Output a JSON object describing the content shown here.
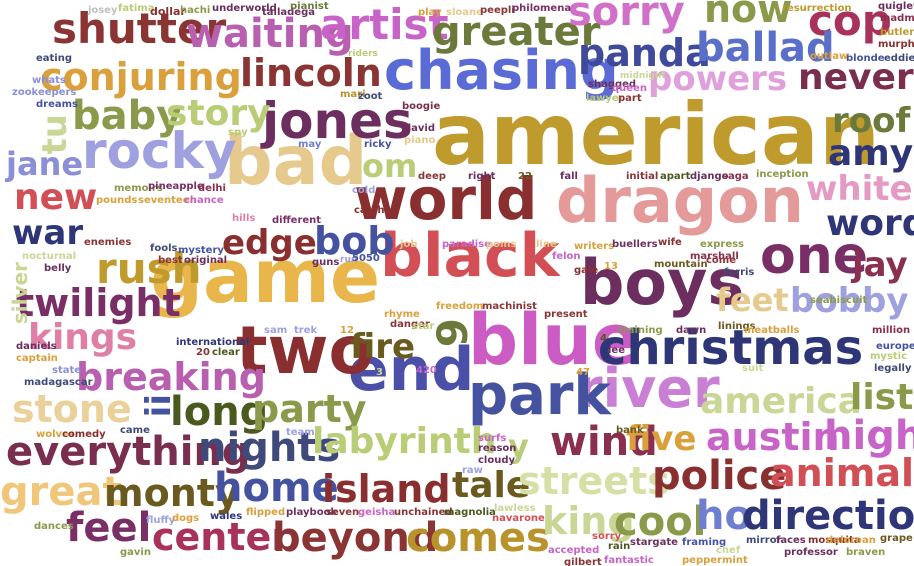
{
  "words": [
    {
      "text": "american",
      "color": "#bf9a2d"
    },
    {
      "text": "game",
      "color": "#e8b64a"
    },
    {
      "text": "blue",
      "color": "#cc5bc4"
    },
    {
      "text": "bad",
      "color": "#e6c98c"
    },
    {
      "text": "dragon",
      "color": "#e59a9a"
    },
    {
      "text": "world",
      "color": "#8a2f2f"
    },
    {
      "text": "black",
      "color": "#d24f55"
    },
    {
      "text": "boys",
      "color": "#6b2e5e"
    },
    {
      "text": "end",
      "color": "#4a4fa8"
    },
    {
      "text": "two",
      "color": "#8a2f2f"
    },
    {
      "text": "chasing",
      "color": "#5a6bd6"
    },
    {
      "text": "christmas",
      "color": "#2f3677"
    },
    {
      "text": "river",
      "color": "#c87fd4"
    },
    {
      "text": "park",
      "color": "#4552a0"
    },
    {
      "text": "jones",
      "color": "#6b2e5e"
    },
    {
      "text": "rocky",
      "color": "#9ea0e0"
    },
    {
      "text": "one",
      "color": "#7a2e66"
    },
    {
      "text": "shutter",
      "color": "#8a3434"
    },
    {
      "text": "waiting",
      "color": "#b85fb0"
    },
    {
      "text": "artist",
      "color": "#c864c8"
    },
    {
      "text": "greater",
      "color": "#6b7a3a"
    },
    {
      "text": "sorry",
      "color": "#d070c8"
    },
    {
      "text": "now",
      "color": "#8a9a4a"
    },
    {
      "text": "cop",
      "color": "#a8325a"
    },
    {
      "text": "panda",
      "color": "#3f4a9a"
    },
    {
      "text": "ballad",
      "color": "#5a70c8"
    },
    {
      "text": "conjuring",
      "color": "#d9a03c"
    },
    {
      "text": "lincoln",
      "color": "#8a3434"
    },
    {
      "text": "powers",
      "color": "#e0a0dc"
    },
    {
      "text": "never",
      "color": "#7a2e4e"
    },
    {
      "text": "baby",
      "color": "#8a9a4a"
    },
    {
      "text": "story",
      "color": "#b9cc76"
    },
    {
      "text": "roof",
      "color": "#6b7a3a"
    },
    {
      "text": "amy",
      "color": "#2f3677"
    },
    {
      "text": "jane",
      "color": "#8a8fd6"
    },
    {
      "text": "new",
      "color": "#d24f55"
    },
    {
      "text": "war",
      "color": "#2f3677"
    },
    {
      "text": "om",
      "color": "#b9cc76"
    },
    {
      "text": "white",
      "color": "#e59ac4"
    },
    {
      "text": "word",
      "color": "#2f3677"
    },
    {
      "text": "edge",
      "color": "#8a2f2f"
    },
    {
      "text": "bob",
      "color": "#4552a0"
    },
    {
      "text": "rush",
      "color": "#bf9a2d"
    },
    {
      "text": "jay",
      "color": "#8a2f4e"
    },
    {
      "text": "twilight",
      "color": "#7a2e66"
    },
    {
      "text": "feet",
      "color": "#e6c98c"
    },
    {
      "text": "bobby",
      "color": "#9ea0e0"
    },
    {
      "text": "kings",
      "color": "#e07fa6"
    },
    {
      "text": "fire",
      "color": "#6b5a1f"
    },
    {
      "text": "breaking",
      "color": "#b85fb0"
    },
    {
      "text": "stone",
      "color": "#ead09a"
    },
    {
      "text": "long",
      "color": "#4a5a1f"
    },
    {
      "text": "party",
      "color": "#8a9a4a"
    },
    {
      "text": "america",
      "color": "#c9d696"
    },
    {
      "text": "list",
      "color": "#8a9a4a"
    },
    {
      "text": "everything",
      "color": "#7a2e4e"
    },
    {
      "text": "nights",
      "color": "#3f4a7a"
    },
    {
      "text": "labyrinth",
      "color": "#b9cc76"
    },
    {
      "text": "wind",
      "color": "#8a2f4e"
    },
    {
      "text": "five",
      "color": "#d9a03c"
    },
    {
      "text": "austin",
      "color": "#c864c8"
    },
    {
      "text": "high",
      "color": "#c864c8"
    },
    {
      "text": "great",
      "color": "#f0c77a"
    },
    {
      "text": "monty",
      "color": "#6b5a1f"
    },
    {
      "text": "home",
      "color": "#4552a0"
    },
    {
      "text": "island",
      "color": "#8a2f2f"
    },
    {
      "text": "tale",
      "color": "#6b5a1f"
    },
    {
      "text": "streets",
      "color": "#d6e0a6"
    },
    {
      "text": "police",
      "color": "#8a2f2f"
    },
    {
      "text": "animals",
      "color": "#d24f55"
    },
    {
      "text": "feel",
      "color": "#7a2e66"
    },
    {
      "text": "center",
      "color": "#a8325a"
    },
    {
      "text": "beyond",
      "color": "#8a3434"
    },
    {
      "text": "comes",
      "color": "#b8922a"
    },
    {
      "text": "king",
      "color": "#c9d696"
    },
    {
      "text": "cool",
      "color": "#8a9a4a"
    },
    {
      "text": "ho",
      "color": "#6f7fd0"
    },
    {
      "text": "direction",
      "color": "#2f3677"
    },
    {
      "text": "tu",
      "color": "#c9d696"
    },
    {
      "text": "ii",
      "color": "#4552a0"
    },
    {
      "text": "9",
      "color": "#6b7a3a"
    },
    {
      "text": "y",
      "color": "#b9cc76"
    },
    {
      "text": "josey",
      "color": "#c0c0c0"
    },
    {
      "text": "fatima",
      "color": "#b9cc76"
    },
    {
      "text": "dollar",
      "color": "#8a2f2f"
    },
    {
      "text": "hachi",
      "color": "#8a9a4a"
    },
    {
      "text": "underworld",
      "color": "#6b2e5e"
    },
    {
      "text": "talladega",
      "color": "#6b2e5e"
    },
    {
      "text": "pianist",
      "color": "#6b7a3a"
    },
    {
      "text": "play",
      "color": "#d9a03c"
    },
    {
      "text": "sloane",
      "color": "#e6c98c"
    },
    {
      "text": "peepli",
      "color": "#8a3434"
    },
    {
      "text": "philomena",
      "color": "#7a2e66"
    },
    {
      "text": "resurrection",
      "color": "#bf9a2d"
    },
    {
      "text": "quigley",
      "color": "#6b2e5e"
    },
    {
      "text": "madman",
      "color": "#8a2f4e"
    },
    {
      "text": "butler",
      "color": "#bf9a2d"
    },
    {
      "text": "murphy",
      "color": "#8a2f2f"
    },
    {
      "text": "eddie",
      "color": "#3f4a7a"
    },
    {
      "text": "blonde",
      "color": "#4552a0"
    },
    {
      "text": "outlaw",
      "color": "#d9a03c"
    },
    {
      "text": "eating",
      "color": "#3f4a7a"
    },
    {
      "text": "whats",
      "color": "#8a8fd6"
    },
    {
      "text": "zookeepers",
      "color": "#8a8fd6"
    },
    {
      "text": "dreams",
      "color": "#4552a0"
    },
    {
      "text": "riders",
      "color": "#b9cc76"
    },
    {
      "text": "mari",
      "color": "#b8922a"
    },
    {
      "text": "zoot",
      "color": "#3f4a7a"
    },
    {
      "text": "midnight",
      "color": "#c9d696"
    },
    {
      "text": "shagged",
      "color": "#6b2e5e"
    },
    {
      "text": "queen",
      "color": "#c864c8"
    },
    {
      "text": "lawyer",
      "color": "#b9cc76"
    },
    {
      "text": "part",
      "color": "#8a3434"
    },
    {
      "text": "boogie",
      "color": "#7a2e4e"
    },
    {
      "text": "david",
      "color": "#6b2e5e"
    },
    {
      "text": "piano",
      "color": "#e6c98c"
    },
    {
      "text": "spy",
      "color": "#b9cc76"
    },
    {
      "text": "may",
      "color": "#6f7fd0"
    },
    {
      "text": "ricky",
      "color": "#4552a0"
    },
    {
      "text": "deep",
      "color": "#8a3434"
    },
    {
      "text": "right",
      "color": "#6b2e5e"
    },
    {
      "text": "22",
      "color": "#6b5a1f"
    },
    {
      "text": "fall",
      "color": "#6b2e5e"
    },
    {
      "text": "initial",
      "color": "#8a3434"
    },
    {
      "text": "apart",
      "color": "#4a5a1f"
    },
    {
      "text": "django",
      "color": "#6b2e5e"
    },
    {
      "text": "saga",
      "color": "#8a2f4e"
    },
    {
      "text": "inception",
      "color": "#8a9a4a"
    },
    {
      "text": "cold",
      "color": "#9ea0e0"
    },
    {
      "text": "memoirs",
      "color": "#8a9a4a"
    },
    {
      "text": "pineapple",
      "color": "#7a2e66"
    },
    {
      "text": "delhi",
      "color": "#8a2f4e"
    },
    {
      "text": "pounds",
      "color": "#d9a03c"
    },
    {
      "text": "seventeen",
      "color": "#d9a03c"
    },
    {
      "text": "chance",
      "color": "#c864c8"
    },
    {
      "text": "hills",
      "color": "#e07fa6"
    },
    {
      "text": "different",
      "color": "#7a2e66"
    },
    {
      "text": "catch",
      "color": "#8a2f2f"
    },
    {
      "text": "enemies",
      "color": "#8a3434"
    },
    {
      "text": "nocturnal",
      "color": "#c9d696"
    },
    {
      "text": "belly",
      "color": "#6b2e5e"
    },
    {
      "text": "silver",
      "color": "#c9d696"
    },
    {
      "text": "fools",
      "color": "#3f4a7a"
    },
    {
      "text": "best",
      "color": "#8a3434"
    },
    {
      "text": "mystery",
      "color": "#4552a0"
    },
    {
      "text": "original",
      "color": "#6b2e5e"
    },
    {
      "text": "guns",
      "color": "#6b2e5e"
    },
    {
      "text": "run",
      "color": "#9ea0e0"
    },
    {
      "text": "5050",
      "color": "#4552a0"
    },
    {
      "text": "job",
      "color": "#e6c98c"
    },
    {
      "text": "paradise",
      "color": "#c864c8"
    },
    {
      "text": "poms",
      "color": "#e6c98c"
    },
    {
      "text": "line",
      "color": "#e6c98c"
    },
    {
      "text": "writers",
      "color": "#d9a03c"
    },
    {
      "text": "buellers",
      "color": "#6b2e5e"
    },
    {
      "text": "wife",
      "color": "#8a2f2f"
    },
    {
      "text": "express",
      "color": "#8a9a4a"
    },
    {
      "text": "come",
      "color": "#8a3434"
    },
    {
      "text": "ferris",
      "color": "#3f4a7a"
    },
    {
      "text": "mountain",
      "color": "#6b5a1f"
    },
    {
      "text": "marshall",
      "color": "#8a2f4e"
    },
    {
      "text": "felon",
      "color": "#c864c8"
    },
    {
      "text": "gale",
      "color": "#8a2f2f"
    },
    {
      "text": "13",
      "color": "#d9a03c"
    },
    {
      "text": "freedom",
      "color": "#d9a03c"
    },
    {
      "text": "machinist",
      "color": "#8a3434"
    },
    {
      "text": "rhyme",
      "color": "#d9a03c"
    },
    {
      "text": "danger",
      "color": "#8a3434"
    },
    {
      "text": "star",
      "color": "#b9cc76"
    },
    {
      "text": "present",
      "color": "#8a3434"
    },
    {
      "text": "trek",
      "color": "#9ea0e0"
    },
    {
      "text": "sam",
      "color": "#9ea0e0"
    },
    {
      "text": "12",
      "color": "#d9a03c"
    },
    {
      "text": "training",
      "color": "#8a9a4a"
    },
    {
      "text": "dawn",
      "color": "#6b2e5e"
    },
    {
      "text": "linings",
      "color": "#6b5a1f"
    },
    {
      "text": "meatballs",
      "color": "#d9a03c"
    },
    {
      "text": "seabiscuit",
      "color": "#8a9a4a"
    },
    {
      "text": "million",
      "color": "#8a2f4e"
    },
    {
      "text": "europes",
      "color": "#4552a0"
    },
    {
      "text": "mystic",
      "color": "#b9cc76"
    },
    {
      "text": "legally",
      "color": "#3f4a7a"
    },
    {
      "text": "international",
      "color": "#2f3677"
    },
    {
      "text": "20",
      "color": "#8a3434"
    },
    {
      "text": "clear",
      "color": "#4a5a1f"
    },
    {
      "text": "daniels",
      "color": "#6b2e5e"
    },
    {
      "text": "captain",
      "color": "#d9a03c"
    },
    {
      "text": "state",
      "color": "#8a8fd6"
    },
    {
      "text": "madagascar",
      "color": "#3f4a7a"
    },
    {
      "text": "3",
      "color": "#c9d696"
    },
    {
      "text": "420",
      "color": "#c864c8"
    },
    {
      "text": "lee",
      "color": "#6b2e5e"
    },
    {
      "text": "47",
      "color": "#d9a03c"
    },
    {
      "text": "suit",
      "color": "#c9d696"
    },
    {
      "text": "wolves",
      "color": "#d9a03c"
    },
    {
      "text": "comedy",
      "color": "#8a2f2f"
    },
    {
      "text": "came",
      "color": "#3f4a7a"
    },
    {
      "text": "team",
      "color": "#9ea0e0"
    },
    {
      "text": "surfs",
      "color": "#c864c8"
    },
    {
      "text": "reason",
      "color": "#6b2e5e"
    },
    {
      "text": "cloudy",
      "color": "#6b2e5e"
    },
    {
      "text": "bank",
      "color": "#6b5a1f"
    },
    {
      "text": "raw",
      "color": "#9ea0e0"
    },
    {
      "text": "wales",
      "color": "#2f3677"
    },
    {
      "text": "flipped",
      "color": "#d9a03c"
    },
    {
      "text": "playbook",
      "color": "#6b2e5e"
    },
    {
      "text": "seven",
      "color": "#8a3434"
    },
    {
      "text": "geisha",
      "color": "#c864c8"
    },
    {
      "text": "unchained",
      "color": "#8a3434"
    },
    {
      "text": "magnolia",
      "color": "#4a5a1f"
    },
    {
      "text": "lawless",
      "color": "#c9d696"
    },
    {
      "text": "navarone",
      "color": "#d24f55"
    },
    {
      "text": "dances",
      "color": "#8a9a4a"
    },
    {
      "text": "fluffy",
      "color": "#9ea0e0"
    },
    {
      "text": "dogs",
      "color": "#d9a03c"
    },
    {
      "text": "accepted",
      "color": "#c864c8"
    },
    {
      "text": "sorry",
      "color": "#d24f55"
    },
    {
      "text": "rain",
      "color": "#4a5a1f"
    },
    {
      "text": "stargate",
      "color": "#6b2e5e"
    },
    {
      "text": "framing",
      "color": "#4552a0"
    },
    {
      "text": "chef",
      "color": "#c9d696"
    },
    {
      "text": "mirror",
      "color": "#3f4a7a"
    },
    {
      "text": "faces",
      "color": "#6b2e5e"
    },
    {
      "text": "mosquita",
      "color": "#8a2f2f"
    },
    {
      "text": "delorean",
      "color": "#d9a03c"
    },
    {
      "text": "grape",
      "color": "#6b5a1f"
    },
    {
      "text": "braven",
      "color": "#8a9a4a"
    },
    {
      "text": "professor",
      "color": "#6b2e5e"
    },
    {
      "text": "gavin",
      "color": "#8a9a4a"
    },
    {
      "text": "gilbert",
      "color": "#8a3434"
    },
    {
      "text": "fantastic",
      "color": "#c864c8"
    },
    {
      "text": "peppermint",
      "color": "#d9a03c"
    },
    {
      "text": "4",
      "color": "#4a5a1f"
    }
  ]
}
